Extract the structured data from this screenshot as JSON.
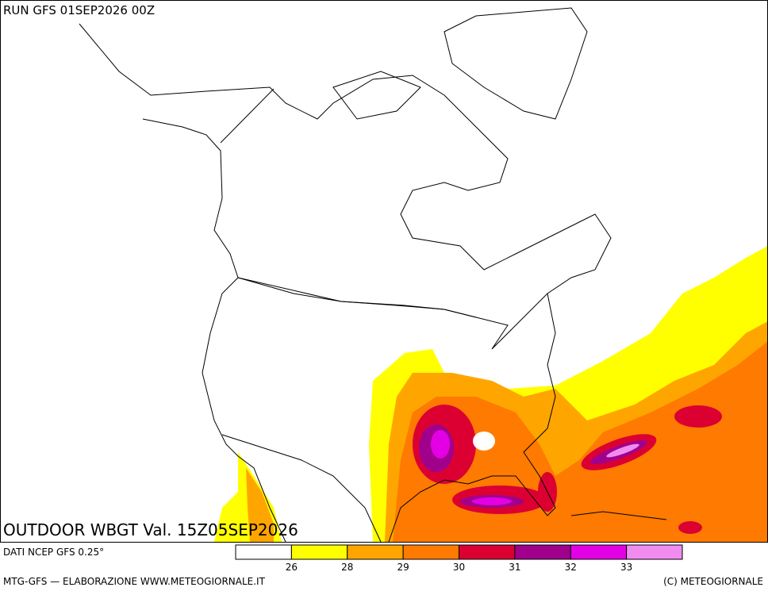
{
  "header": {
    "run": "RUN GFS 01SEP2026 00Z"
  },
  "map": {
    "title": "OUTDOOR WBGT Val. 15Z05SEP2026"
  },
  "footer": {
    "source": "DATI NCEP GFS 0.25°",
    "credit": "MTG-GFS — ELABORAZIONE WWW.METEOGIORNALE.IT",
    "copyright": "(C) METEOGIORNALE"
  },
  "legend": {
    "colors": [
      "#ffffff",
      "#ffff00",
      "#ffa500",
      "#ff7a00",
      "#dc0032",
      "#a0008c",
      "#e400e4",
      "#f08cf0"
    ],
    "ticks": [
      26,
      28,
      29,
      30,
      31,
      32,
      33
    ]
  }
}
